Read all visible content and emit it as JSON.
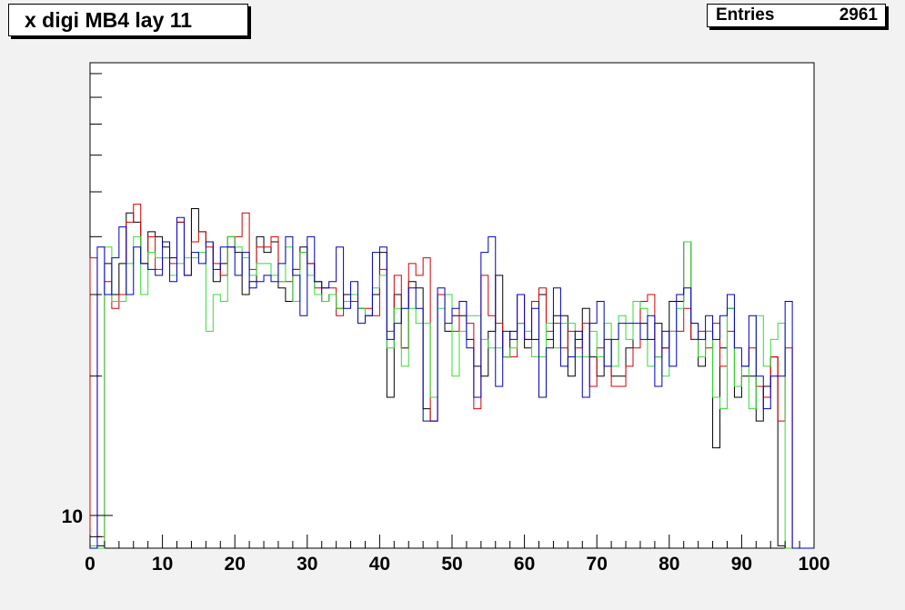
{
  "title": "x digi MB4 lay 11",
  "stats": {
    "entries_label": "Entries",
    "entries_value": "2961"
  },
  "chart_data": {
    "type": "histogram-step",
    "x_range": [
      0,
      100
    ],
    "nbins": 100,
    "y_scale": "log",
    "y_range": [
      8.5,
      95
    ],
    "x_tick_labels": [
      "0",
      "10",
      "20",
      "30",
      "40",
      "50",
      "60",
      "70",
      "80",
      "90",
      "100"
    ],
    "y_tick_labels": [
      "10"
    ],
    "colors": {
      "black": "#000000",
      "red": "#d40000",
      "green": "#33dd33",
      "blue": "#0000bb"
    },
    "series": [
      {
        "color": "#000000",
        "values": [
          0,
          8.6,
          35,
          30,
          35,
          45,
          43,
          35,
          41,
          40,
          38,
          36,
          43,
          33,
          46,
          41,
          39,
          32,
          35,
          40,
          37,
          30,
          32,
          40,
          37,
          39,
          31,
          29,
          34,
          38,
          35,
          32,
          29,
          30,
          28,
          30,
          30,
          28,
          27,
          30,
          37,
          18,
          30,
          23,
          32,
          31,
          17,
          16,
          30,
          25,
          27,
          27,
          24,
          21,
          20,
          25,
          33,
          22,
          25,
          26,
          23,
          24,
          30,
          24,
          27,
          27,
          20,
          24,
          28,
          22,
          20,
          24,
          20,
          20,
          23,
          29,
          26,
          24,
          26,
          23,
          29,
          29,
          39,
          24,
          21,
          25,
          14,
          23,
          28,
          18,
          20,
          20,
          16,
          19,
          22,
          8.6,
          0,
          0,
          0,
          0
        ]
      },
      {
        "color": "#d40000",
        "values": [
          36,
          9,
          32,
          28,
          30,
          43,
          47,
          35,
          40,
          34,
          36,
          35,
          43,
          33,
          39,
          41,
          38,
          35,
          33,
          38,
          40,
          45,
          34,
          38,
          38,
          40,
          32,
          32,
          34,
          37,
          35,
          31,
          31,
          31,
          27,
          29,
          29,
          28,
          28,
          27,
          34,
          25,
          33,
          23,
          35,
          33,
          36,
          16,
          30,
          30,
          25,
          29,
          26,
          17,
          33,
          27,
          26,
          22,
          22,
          30,
          24,
          29,
          31,
          25,
          26,
          23,
          25,
          23,
          26,
          19,
          23,
          24,
          19,
          19,
          21,
          23,
          29,
          30,
          22,
          23,
          25,
          25,
          28,
          24,
          25,
          23,
          26,
          21,
          25,
          19,
          21,
          23,
          19,
          18,
          22,
          16,
          23,
          0,
          0,
          0
        ]
      },
      {
        "color": "#33dd33",
        "values": [
          8.6,
          8,
          38,
          29,
          29,
          35,
          40,
          30,
          37,
          36,
          36,
          33,
          35,
          36,
          36,
          37,
          25,
          30,
          29,
          40,
          38,
          36,
          33,
          35,
          35,
          33,
          32,
          38,
          29,
          37,
          33,
          30,
          29,
          30,
          28,
          29,
          30,
          28,
          27,
          31,
          33,
          23,
          28,
          21,
          28,
          26,
          26,
          18,
          28,
          30,
          20,
          25,
          27,
          27,
          24,
          23,
          23,
          22,
          23,
          26,
          25,
          22,
          22,
          26,
          23,
          26,
          26,
          22,
          22,
          25,
          22,
          26,
          21,
          27,
          24,
          29,
          28,
          21,
          22,
          20,
          25,
          28,
          39,
          26,
          22,
          25,
          18,
          17,
          28,
          19,
          21,
          17,
          27,
          21,
          24,
          26,
          0,
          0,
          0,
          0
        ]
      },
      {
        "color": "#0000bb",
        "values": [
          0,
          38,
          30,
          36,
          42,
          30,
          38,
          35,
          34,
          33,
          39,
          32,
          44,
          33,
          37,
          35,
          39,
          34,
          38,
          38,
          33,
          37,
          31,
          32,
          33,
          32,
          35,
          40,
          33,
          27,
          40,
          32,
          31,
          32,
          38,
          28,
          32,
          26,
          27,
          37,
          38,
          24,
          26,
          28,
          31,
          28,
          16,
          16,
          31,
          26,
          28,
          29,
          23,
          18,
          37,
          40,
          19,
          25,
          24,
          30,
          24,
          28,
          18,
          23,
          31,
          21,
          22,
          25,
          18,
          26,
          29,
          21,
          24,
          26,
          26,
          26,
          24,
          27,
          19,
          25,
          21,
          30,
          31,
          26,
          24,
          27,
          24,
          27,
          30,
          23,
          21,
          27,
          20,
          17,
          20,
          20,
          29,
          0,
          0,
          0
        ]
      }
    ]
  }
}
